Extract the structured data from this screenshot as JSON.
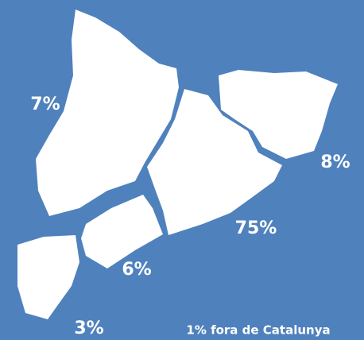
{
  "regions": [
    {
      "label": "7%"
    },
    {
      "label": "8%"
    },
    {
      "label": "75%"
    },
    {
      "label": "6%"
    },
    {
      "label": "3%"
    }
  ],
  "note": "1% fora de Catalunya"
}
